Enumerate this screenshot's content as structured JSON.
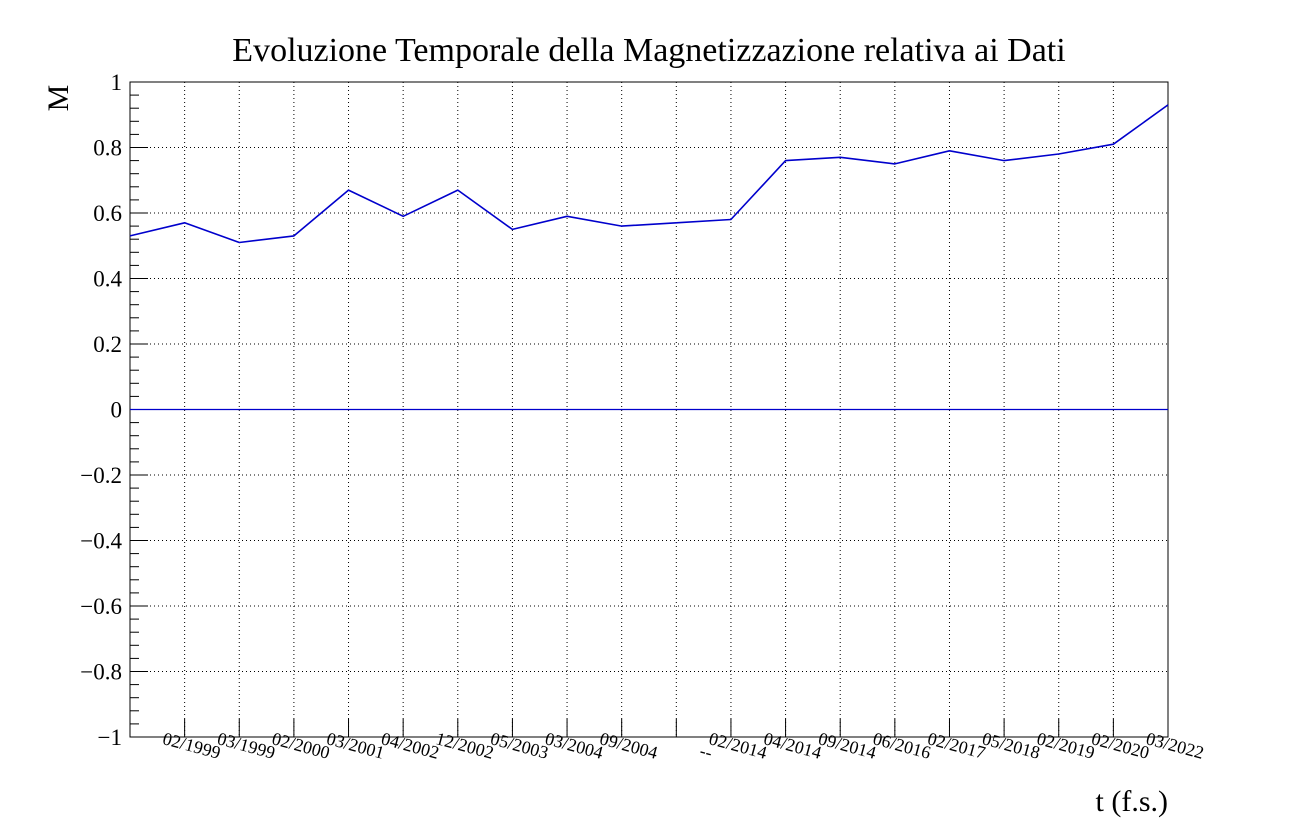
{
  "chart_data": {
    "type": "line",
    "title": "Evoluzione Temporale della Magnetizzazione relativa ai Dati",
    "xlabel": "t (f.s.)",
    "ylabel": "M",
    "ylim": [
      -1,
      1
    ],
    "yticks": [
      -1,
      -0.8,
      -0.6,
      -0.4,
      -0.2,
      0,
      0.2,
      0.4,
      0.6,
      0.8,
      1
    ],
    "ytick_labels": [
      "−1",
      "−0.8",
      "−0.6",
      "−0.4",
      "−0.2",
      "0",
      "0.2",
      "0.4",
      "0.6",
      "0.8",
      "1"
    ],
    "x_tick_labels": [
      "02/1999",
      "03/1999",
      "02/2000",
      "03/2001",
      "04/2002",
      "12/2002",
      "05/2003",
      "03/2004",
      "09/2004",
      "--",
      "02/2014",
      "04/2014",
      "09/2014",
      "06/2016",
      "02/2017",
      "05/2018",
      "02/2019",
      "02/2020",
      "03/2022"
    ],
    "grid": true,
    "series": [
      {
        "color": "#0000cc",
        "values": [
          0.53,
          0.57,
          0.51,
          0.53,
          0.67,
          0.59,
          0.67,
          0.55,
          0.59,
          0.56,
          0.57,
          0.58,
          0.76,
          0.77,
          0.75,
          0.79,
          0.76,
          0.78,
          0.81,
          0.93
        ]
      },
      {
        "color": "#0000cc",
        "values": [
          0,
          0
        ]
      }
    ],
    "colors": {
      "line": "#0000cc",
      "grid": "#000000",
      "axis": "#000000"
    }
  }
}
